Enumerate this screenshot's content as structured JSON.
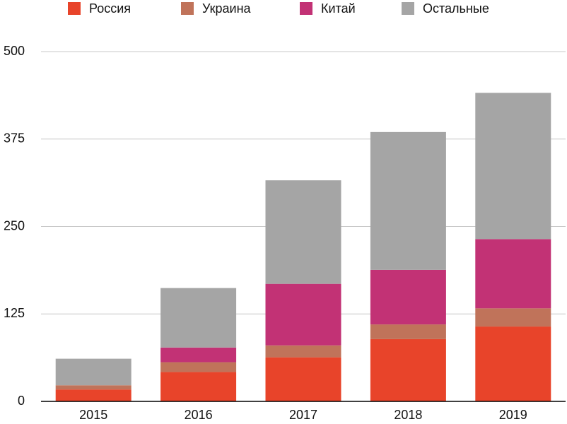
{
  "chart_data": {
    "type": "stacked_bar",
    "categories": [
      "2015",
      "2016",
      "2017",
      "2018",
      "2019"
    ],
    "series": [
      {
        "name": "Россия",
        "color": "#e8442a",
        "values": [
          17,
          42,
          63,
          89,
          107
        ]
      },
      {
        "name": "Украина",
        "color": "#c0735a",
        "values": [
          6,
          14,
          17,
          21,
          26
        ]
      },
      {
        "name": "Китай",
        "color": "#c23275",
        "values": [
          0,
          21,
          88,
          78,
          99
        ]
      },
      {
        "name": "Остальные",
        "color": "#a5a5a5",
        "values": [
          38,
          85,
          148,
          197,
          209
        ]
      }
    ],
    "ylim": [
      0,
      500
    ],
    "yticks": [
      0,
      125,
      250,
      375,
      500
    ],
    "grid": true,
    "legend": "top"
  }
}
